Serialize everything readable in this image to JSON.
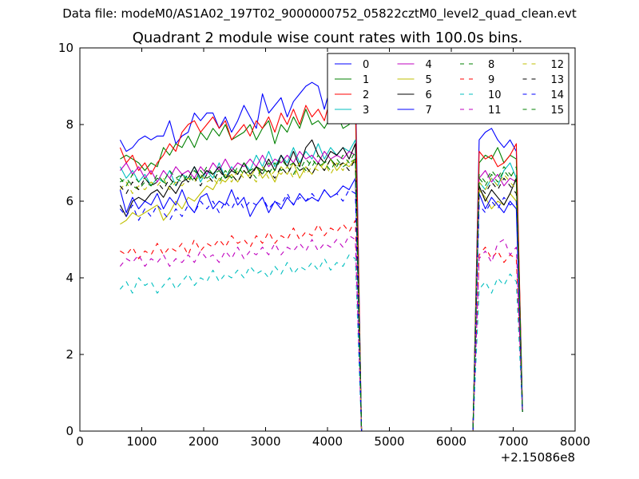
{
  "figure": {
    "suptitle": "Data file: modeM0/AS1A02_197T02_9000000752_05822cztM0_level2_quad_clean.evt"
  },
  "chart_data": {
    "type": "line",
    "title": "Quadrant 2 module wise count rates with 100.0s bins.",
    "xlabel": "",
    "ylabel": "",
    "x_offset_label": "+2.15086e8",
    "xlim": [
      0,
      8000
    ],
    "ylim": [
      0,
      10
    ],
    "xticks": [
      0,
      1000,
      2000,
      3000,
      4000,
      5000,
      6000,
      7000,
      8000
    ],
    "yticks": [
      0,
      2,
      4,
      6,
      8,
      10
    ],
    "grid": false,
    "legend": {
      "placement": "top-right",
      "columns": 4
    },
    "segments": [
      {
        "start": 650,
        "step": 100,
        "count": 39
      },
      {
        "start": 4550,
        "step": 100,
        "count": 18
      },
      {
        "start": 6350,
        "step": 100,
        "count": 9
      }
    ],
    "series": [
      {
        "name": "0",
        "color": "#0000ff",
        "dash": "solid",
        "values": [
          7.6,
          7.3,
          7.4,
          7.6,
          7.7,
          7.6,
          7.7,
          7.7,
          8.1,
          7.5,
          7.7,
          7.8,
          8.3,
          8.1,
          8.3,
          8.3,
          7.9,
          8.2,
          7.8,
          8.1,
          8.5,
          8.2,
          7.9,
          8.8,
          8.3,
          8.5,
          8.7,
          8.2,
          8.6,
          8.8,
          9.0,
          9.1,
          9.0,
          8.4,
          9.0,
          8.6,
          8.5,
          8.7,
          9.2,
          0,
          0,
          0,
          0,
          0,
          0,
          0,
          0,
          0,
          0,
          0,
          0,
          0,
          0,
          0,
          0,
          0,
          0,
          0,
          7.6,
          7.8,
          7.9,
          7.6,
          7.4,
          7.6,
          7.3,
          0.5
        ]
      },
      {
        "name": "1",
        "color": "#008000",
        "dash": "solid",
        "values": [
          7.1,
          7.2,
          7.1,
          7.0,
          6.8,
          7.0,
          6.9,
          7.4,
          7.2,
          7.5,
          7.4,
          7.7,
          7.4,
          7.8,
          7.6,
          7.9,
          7.7,
          8.0,
          7.6,
          7.7,
          7.8,
          8.0,
          7.6,
          7.9,
          8.1,
          7.5,
          8.0,
          7.8,
          8.2,
          7.9,
          8.4,
          8.0,
          8.1,
          7.9,
          8.2,
          8.3,
          7.9,
          8.0,
          8.5,
          0,
          0,
          0,
          0,
          0,
          0,
          0,
          0,
          0,
          0,
          0,
          0,
          0,
          0,
          0,
          0,
          0,
          0,
          0,
          7.0,
          7.2,
          7.1,
          7.4,
          7.0,
          7.2,
          7.1,
          0.6
        ]
      },
      {
        "name": "2",
        "color": "#ff0000",
        "dash": "solid",
        "values": [
          7.4,
          7.0,
          7.2,
          6.8,
          7.0,
          6.7,
          7.0,
          7.2,
          7.5,
          7.3,
          7.8,
          8.0,
          8.1,
          7.8,
          8.0,
          8.2,
          7.9,
          8.1,
          7.6,
          7.8,
          8.0,
          7.7,
          8.1,
          7.9,
          8.2,
          7.8,
          8.3,
          8.0,
          8.4,
          8.0,
          8.5,
          8.2,
          8.4,
          8.1,
          8.7,
          8.5,
          8.7,
          8.6,
          8.8,
          0,
          0,
          0,
          0,
          0,
          0,
          0,
          0,
          0,
          0,
          0,
          0,
          0,
          0,
          0,
          0,
          0,
          0,
          0,
          7.3,
          7.1,
          7.2,
          6.9,
          7.0,
          7.2,
          7.5,
          0.6
        ]
      },
      {
        "name": "3",
        "color": "#00bfbf",
        "dash": "solid",
        "values": [
          6.9,
          6.6,
          6.8,
          6.5,
          6.7,
          6.4,
          6.6,
          6.5,
          6.8,
          6.4,
          6.7,
          6.6,
          6.9,
          6.5,
          6.8,
          6.6,
          7.0,
          6.6,
          6.9,
          6.7,
          7.0,
          6.8,
          7.2,
          6.9,
          7.3,
          6.9,
          7.2,
          7.0,
          7.4,
          7.0,
          7.3,
          7.1,
          7.5,
          7.1,
          7.4,
          7.2,
          7.4,
          7.3,
          7.6,
          0,
          0,
          0,
          0,
          0,
          0,
          0,
          0,
          0,
          0,
          0,
          0,
          0,
          0,
          0,
          0,
          0,
          0,
          0,
          6.5,
          6.3,
          6.6,
          6.4,
          6.8,
          7.0,
          6.6,
          0.5
        ]
      },
      {
        "name": "4",
        "color": "#bf00bf",
        "dash": "solid",
        "values": [
          6.8,
          7.0,
          6.7,
          6.9,
          6.6,
          6.8,
          6.5,
          6.8,
          6.6,
          6.9,
          6.7,
          6.8,
          6.6,
          6.9,
          6.7,
          7.0,
          6.8,
          7.1,
          6.8,
          7.0,
          6.9,
          7.1,
          6.9,
          7.2,
          6.9,
          7.1,
          7.0,
          7.2,
          7.0,
          7.3,
          7.1,
          7.2,
          7.0,
          7.3,
          7.1,
          7.2,
          7.1,
          7.3,
          7.2,
          0,
          0,
          0,
          0,
          0,
          0,
          0,
          0,
          0,
          0,
          0,
          0,
          0,
          0,
          0,
          0,
          0,
          0,
          0,
          6.6,
          6.8,
          6.5,
          6.7,
          6.4,
          6.6,
          6.5,
          0.5
        ]
      },
      {
        "name": "5",
        "color": "#bfbf00",
        "dash": "solid",
        "values": [
          5.4,
          5.5,
          5.7,
          5.6,
          5.7,
          5.8,
          5.9,
          5.5,
          5.7,
          6.0,
          5.8,
          6.1,
          6.0,
          6.2,
          6.4,
          6.3,
          6.6,
          6.5,
          6.7,
          6.5,
          6.8,
          6.6,
          6.9,
          6.6,
          6.8,
          6.5,
          6.9,
          6.7,
          7.0,
          6.6,
          6.9,
          6.7,
          7.0,
          6.8,
          7.1,
          6.8,
          7.0,
          6.9,
          7.1,
          0,
          0,
          0,
          0,
          0,
          0,
          0,
          0,
          0,
          0,
          0,
          0,
          0,
          0,
          0,
          0,
          0,
          0,
          0,
          6.3,
          6.1,
          5.8,
          6.0,
          5.9,
          6.2,
          6.0,
          0.5
        ]
      },
      {
        "name": "6",
        "color": "#000000",
        "dash": "solid",
        "values": [
          5.9,
          5.6,
          6.0,
          6.1,
          6.0,
          6.2,
          6.3,
          6.1,
          6.4,
          6.2,
          6.5,
          6.6,
          6.9,
          6.6,
          6.8,
          6.7,
          6.9,
          6.6,
          6.8,
          6.7,
          7.0,
          6.7,
          6.9,
          6.8,
          7.1,
          6.8,
          7.2,
          6.9,
          7.3,
          6.9,
          7.4,
          7.6,
          7.2,
          7.0,
          7.3,
          7.2,
          7.4,
          7.1,
          7.5,
          0,
          0,
          0,
          0,
          0,
          0,
          0,
          0,
          0,
          0,
          0,
          0,
          0,
          0,
          0,
          0,
          0,
          0,
          0,
          6.4,
          6.0,
          6.3,
          6.1,
          5.9,
          6.2,
          6.6,
          0.5
        ]
      },
      {
        "name": "7",
        "color": "#0000ff",
        "dash": "solid",
        "values": [
          6.3,
          5.7,
          6.1,
          5.8,
          6.0,
          5.9,
          6.2,
          5.8,
          6.1,
          5.9,
          6.3,
          5.9,
          5.7,
          6.1,
          6.2,
          5.8,
          6.0,
          5.9,
          6.3,
          5.9,
          6.1,
          5.6,
          5.9,
          6.1,
          5.7,
          6.0,
          5.8,
          6.1,
          5.9,
          6.2,
          6.0,
          6.1,
          6.0,
          6.3,
          6.1,
          6.2,
          6.4,
          6.3,
          6.6,
          0,
          0,
          0,
          0,
          0,
          0,
          0,
          0,
          0,
          0,
          0,
          0,
          0,
          0,
          0,
          0,
          0,
          0,
          0,
          6.2,
          5.8,
          6.1,
          5.9,
          5.7,
          6.0,
          5.8,
          0.5
        ]
      },
      {
        "name": "8",
        "color": "#008000",
        "dash": "dashed",
        "values": [
          6.5,
          6.6,
          6.4,
          6.3,
          6.5,
          6.4,
          6.6,
          6.5,
          6.4,
          6.6,
          6.5,
          6.7,
          6.5,
          6.8,
          6.6,
          6.7,
          6.5,
          6.8,
          6.6,
          6.9,
          6.7,
          6.8,
          6.6,
          6.9,
          6.7,
          7.0,
          6.8,
          6.9,
          6.7,
          7.0,
          6.8,
          7.1,
          6.9,
          7.0,
          6.8,
          7.1,
          6.9,
          7.0,
          7.1,
          0,
          0,
          0,
          0,
          0,
          0,
          0,
          0,
          0,
          0,
          0,
          0,
          0,
          0,
          0,
          0,
          0,
          0,
          0,
          6.6,
          6.4,
          6.7,
          6.5,
          6.8,
          6.6,
          6.9,
          0.5
        ]
      },
      {
        "name": "9",
        "color": "#ff0000",
        "dash": "dashed",
        "values": [
          4.7,
          4.6,
          4.8,
          4.5,
          4.7,
          4.6,
          4.9,
          4.6,
          4.8,
          4.7,
          4.9,
          4.6,
          5.0,
          4.7,
          4.9,
          4.8,
          5.0,
          4.8,
          5.1,
          4.9,
          5.0,
          4.8,
          5.1,
          4.9,
          5.2,
          4.9,
          5.1,
          5.0,
          5.3,
          5.0,
          5.2,
          5.1,
          5.4,
          5.1,
          5.3,
          5.2,
          5.4,
          5.2,
          5.5,
          0,
          0,
          0,
          0,
          0,
          0,
          0,
          0,
          0,
          0,
          0,
          0,
          0,
          0,
          0,
          0,
          0,
          0,
          0,
          4.6,
          4.8,
          4.5,
          4.7,
          4.4,
          4.6,
          4.5,
          0.5
        ]
      },
      {
        "name": "10",
        "color": "#00bfbf",
        "dash": "dashed",
        "values": [
          3.7,
          3.9,
          3.6,
          4.0,
          3.8,
          3.9,
          3.6,
          3.8,
          4.0,
          3.7,
          3.9,
          4.1,
          3.8,
          4.0,
          3.9,
          4.2,
          3.9,
          4.1,
          4.0,
          4.2,
          4.0,
          4.3,
          4.1,
          4.2,
          4.0,
          4.3,
          4.1,
          4.4,
          4.1,
          4.3,
          4.2,
          4.4,
          4.2,
          4.5,
          4.2,
          4.4,
          4.3,
          4.6,
          4.5,
          0,
          0,
          0,
          0,
          0,
          0,
          0,
          0,
          0,
          0,
          0,
          0,
          0,
          0,
          0,
          0,
          0,
          0,
          0,
          3.7,
          3.9,
          3.6,
          4.0,
          3.8,
          4.1,
          3.9,
          0.5
        ]
      },
      {
        "name": "11",
        "color": "#bf00bf",
        "dash": "dashed",
        "values": [
          4.3,
          4.5,
          4.4,
          4.6,
          4.3,
          4.5,
          4.4,
          4.6,
          4.3,
          4.5,
          4.4,
          4.6,
          4.4,
          4.7,
          4.5,
          4.6,
          4.4,
          4.7,
          4.5,
          4.8,
          4.5,
          4.7,
          4.6,
          4.8,
          4.6,
          4.9,
          4.6,
          4.8,
          4.7,
          4.9,
          4.7,
          5.0,
          4.7,
          4.9,
          4.8,
          5.0,
          4.8,
          5.1,
          5.0,
          0,
          0,
          0,
          0,
          0,
          0,
          0,
          0,
          0,
          0,
          0,
          0,
          0,
          0,
          0,
          0,
          0,
          0,
          0,
          4.5,
          4.7,
          4.4,
          4.9,
          5.0,
          4.6,
          4.8,
          0.5
        ]
      },
      {
        "name": "12",
        "color": "#bfbf00",
        "dash": "dashed",
        "values": [
          6.3,
          6.5,
          6.2,
          6.4,
          6.3,
          6.5,
          6.4,
          6.6,
          6.3,
          6.5,
          6.4,
          6.6,
          6.5,
          6.7,
          6.5,
          6.6,
          6.4,
          6.7,
          6.5,
          6.8,
          6.6,
          6.7,
          6.5,
          6.9,
          6.6,
          6.8,
          6.7,
          6.9,
          6.6,
          7.0,
          6.7,
          6.9,
          6.8,
          7.0,
          6.7,
          7.0,
          6.8,
          7.1,
          7.0,
          0,
          0,
          0,
          0,
          0,
          0,
          0,
          0,
          0,
          0,
          0,
          0,
          0,
          0,
          0,
          0,
          0,
          0,
          0,
          6.5,
          6.3,
          6.6,
          6.4,
          6.7,
          6.5,
          6.3,
          0.5
        ]
      },
      {
        "name": "13",
        "color": "#000000",
        "dash": "dashed",
        "values": [
          6.4,
          6.2,
          6.5,
          6.3,
          6.6,
          6.4,
          6.5,
          6.3,
          6.6,
          6.4,
          6.7,
          6.5,
          6.6,
          6.4,
          6.7,
          6.5,
          6.8,
          6.6,
          6.7,
          6.5,
          6.8,
          6.6,
          6.9,
          6.7,
          6.8,
          6.6,
          6.9,
          6.7,
          7.0,
          6.8,
          6.9,
          6.7,
          7.0,
          6.8,
          7.1,
          6.9,
          7.0,
          6.8,
          7.1,
          0,
          0,
          0,
          0,
          0,
          0,
          0,
          0,
          0,
          0,
          0,
          0,
          0,
          0,
          0,
          0,
          0,
          0,
          0,
          6.4,
          6.2,
          6.5,
          6.3,
          6.6,
          6.4,
          6.2,
          0.5
        ]
      },
      {
        "name": "14",
        "color": "#0000ff",
        "dash": "dashed",
        "values": [
          5.8,
          5.6,
          5.9,
          5.5,
          5.8,
          5.6,
          5.9,
          5.7,
          5.5,
          5.8,
          5.6,
          5.9,
          5.7,
          6.0,
          5.8,
          6.0,
          5.7,
          6.0,
          5.8,
          6.1,
          5.8,
          6.0,
          5.9,
          6.1,
          5.8,
          6.0,
          5.9,
          6.2,
          5.9,
          6.1,
          6.0,
          6.2,
          6.0,
          6.3,
          6.1,
          6.2,
          6.0,
          6.3,
          6.2,
          0,
          0,
          0,
          0,
          0,
          0,
          0,
          0,
          0,
          0,
          0,
          0,
          0,
          0,
          0,
          0,
          0,
          0,
          0,
          5.9,
          5.7,
          6.0,
          5.8,
          6.1,
          5.9,
          6.0,
          0.5
        ]
      },
      {
        "name": "15",
        "color": "#008000",
        "dash": "dashed",
        "values": [
          6.6,
          6.4,
          6.7,
          6.5,
          6.6,
          6.4,
          6.7,
          6.5,
          6.8,
          6.6,
          6.7,
          6.5,
          6.8,
          6.6,
          6.9,
          6.7,
          6.8,
          6.6,
          6.9,
          6.7,
          7.0,
          6.8,
          6.9,
          6.7,
          7.0,
          6.8,
          7.1,
          6.9,
          7.0,
          6.8,
          7.1,
          6.9,
          7.2,
          7.0,
          7.1,
          6.9,
          7.2,
          7.0,
          7.3,
          0,
          0,
          0,
          0,
          0,
          0,
          0,
          0,
          0,
          0,
          0,
          0,
          0,
          0,
          0,
          0,
          0,
          0,
          0,
          6.7,
          6.5,
          6.8,
          6.6,
          6.9,
          6.7,
          6.5,
          0.5
        ]
      }
    ]
  }
}
